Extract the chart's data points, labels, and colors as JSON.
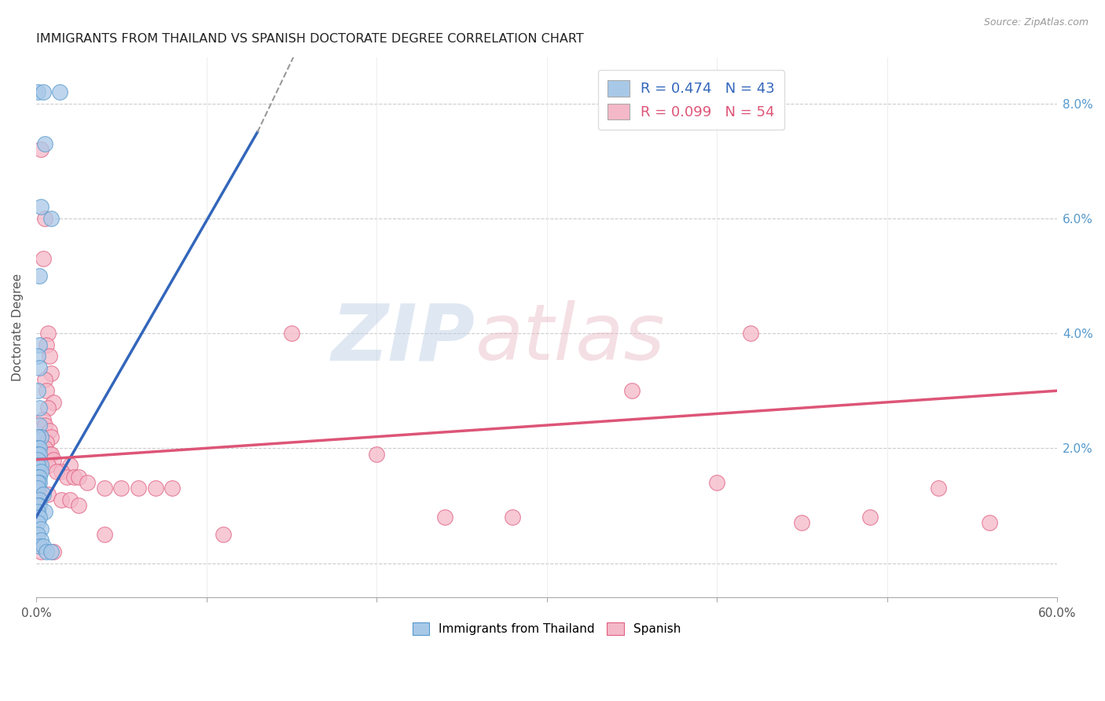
{
  "title": "IMMIGRANTS FROM THAILAND VS SPANISH DOCTORATE DEGREE CORRELATION CHART",
  "source": "Source: ZipAtlas.com",
  "ylabel": "Doctorate Degree",
  "xlim": [
    0.0,
    0.6
  ],
  "ylim": [
    -0.006,
    0.088
  ],
  "yticks": [
    0.0,
    0.02,
    0.04,
    0.06,
    0.08
  ],
  "ytick_labels": [
    "",
    "2.0%",
    "4.0%",
    "6.0%",
    "8.0%"
  ],
  "xticks": [
    0.0,
    0.1,
    0.2,
    0.3,
    0.4,
    0.5,
    0.6
  ],
  "xtick_labels": [
    "0.0%",
    "",
    "",
    "",
    "",
    "",
    "60.0%"
  ],
  "legend_entries": [
    {
      "label": "R = 0.474   N = 43",
      "color": "#a8c8e8"
    },
    {
      "label": "R = 0.099   N = 54",
      "color": "#f4b8c8"
    }
  ],
  "thailand_color": "#a8c8e8",
  "spanish_color": "#f4b8c8",
  "thailand_edge_color": "#5599cc",
  "spanish_edge_color": "#e06080",
  "thailand_line_color": "#3366bb",
  "spanish_line_color": "#dd5577",
  "thailand_scatter": [
    [
      0.001,
      0.082
    ],
    [
      0.004,
      0.082
    ],
    [
      0.005,
      0.073
    ],
    [
      0.014,
      0.082
    ],
    [
      0.003,
      0.062
    ],
    [
      0.002,
      0.05
    ],
    [
      0.009,
      0.06
    ],
    [
      0.002,
      0.038
    ],
    [
      0.001,
      0.036
    ],
    [
      0.002,
      0.034
    ],
    [
      0.001,
      0.03
    ],
    [
      0.002,
      0.027
    ],
    [
      0.002,
      0.024
    ],
    [
      0.003,
      0.022
    ],
    [
      0.001,
      0.022
    ],
    [
      0.001,
      0.02
    ],
    [
      0.002,
      0.02
    ],
    [
      0.001,
      0.019
    ],
    [
      0.002,
      0.019
    ],
    [
      0.001,
      0.018
    ],
    [
      0.003,
      0.017
    ],
    [
      0.001,
      0.017
    ],
    [
      0.003,
      0.016
    ],
    [
      0.001,
      0.015
    ],
    [
      0.002,
      0.015
    ],
    [
      0.002,
      0.014
    ],
    [
      0.001,
      0.014
    ],
    [
      0.001,
      0.013
    ],
    [
      0.004,
      0.012
    ],
    [
      0.002,
      0.011
    ],
    [
      0.002,
      0.01
    ],
    [
      0.001,
      0.01
    ],
    [
      0.005,
      0.009
    ],
    [
      0.001,
      0.009
    ],
    [
      0.002,
      0.008
    ],
    [
      0.001,
      0.007
    ],
    [
      0.003,
      0.006
    ],
    [
      0.001,
      0.005
    ],
    [
      0.003,
      0.004
    ],
    [
      0.002,
      0.003
    ],
    [
      0.004,
      0.003
    ],
    [
      0.006,
      0.002
    ],
    [
      0.009,
      0.002
    ]
  ],
  "spanish_scatter": [
    [
      0.003,
      0.072
    ],
    [
      0.005,
      0.06
    ],
    [
      0.004,
      0.053
    ],
    [
      0.007,
      0.04
    ],
    [
      0.006,
      0.038
    ],
    [
      0.008,
      0.036
    ],
    [
      0.009,
      0.033
    ],
    [
      0.005,
      0.032
    ],
    [
      0.006,
      0.03
    ],
    [
      0.01,
      0.028
    ],
    [
      0.007,
      0.027
    ],
    [
      0.004,
      0.025
    ],
    [
      0.005,
      0.024
    ],
    [
      0.008,
      0.023
    ],
    [
      0.003,
      0.022
    ],
    [
      0.009,
      0.022
    ],
    [
      0.006,
      0.021
    ],
    [
      0.005,
      0.02
    ],
    [
      0.008,
      0.019
    ],
    [
      0.009,
      0.019
    ],
    [
      0.01,
      0.018
    ],
    [
      0.007,
      0.017
    ],
    [
      0.02,
      0.017
    ],
    [
      0.015,
      0.016
    ],
    [
      0.012,
      0.016
    ],
    [
      0.018,
      0.015
    ],
    [
      0.022,
      0.015
    ],
    [
      0.025,
      0.015
    ],
    [
      0.03,
      0.014
    ],
    [
      0.04,
      0.013
    ],
    [
      0.05,
      0.013
    ],
    [
      0.06,
      0.013
    ],
    [
      0.07,
      0.013
    ],
    [
      0.08,
      0.013
    ],
    [
      0.003,
      0.012
    ],
    [
      0.007,
      0.012
    ],
    [
      0.015,
      0.011
    ],
    [
      0.02,
      0.011
    ],
    [
      0.025,
      0.01
    ],
    [
      0.15,
      0.04
    ],
    [
      0.35,
      0.03
    ],
    [
      0.42,
      0.04
    ],
    [
      0.2,
      0.019
    ],
    [
      0.53,
      0.013
    ],
    [
      0.4,
      0.014
    ],
    [
      0.24,
      0.008
    ],
    [
      0.49,
      0.008
    ],
    [
      0.28,
      0.008
    ],
    [
      0.45,
      0.007
    ],
    [
      0.56,
      0.007
    ],
    [
      0.003,
      0.002
    ],
    [
      0.01,
      0.002
    ],
    [
      0.04,
      0.005
    ],
    [
      0.11,
      0.005
    ]
  ],
  "thailand_trendline": [
    [
      0.0,
      0.008
    ],
    [
      0.13,
      0.075
    ]
  ],
  "thailand_trendline_dashed": [
    [
      0.13,
      0.075
    ],
    [
      0.3,
      0.18
    ]
  ],
  "spanish_trendline": [
    [
      0.0,
      0.018
    ],
    [
      0.6,
      0.03
    ]
  ],
  "background_color": "#ffffff",
  "grid_color": "#cccccc"
}
